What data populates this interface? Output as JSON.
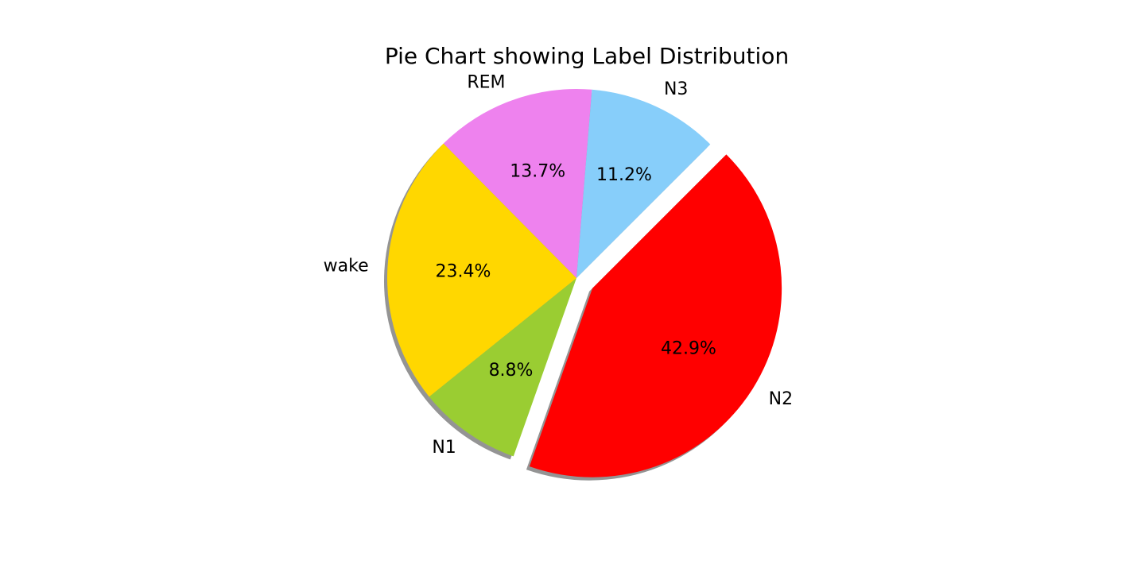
{
  "chart_data": {
    "type": "pie",
    "title": "Pie Chart showing Label Distribution",
    "labels": [
      "N2",
      "N1",
      "wake",
      "REM",
      "N3"
    ],
    "values": [
      42.9,
      8.8,
      23.4,
      13.7,
      11.2
    ],
    "percent_labels": [
      "42.9%",
      "8.8%",
      "23.4%",
      "13.7%",
      "11.2%"
    ],
    "colors": [
      "#ff0000",
      "#9acd32",
      "#ffd700",
      "#ee82ee",
      "#87cefa"
    ],
    "explode": [
      0.1,
      0,
      0,
      0,
      0
    ],
    "shadow": true,
    "start_angle_deg": 45,
    "direction": "clockwise"
  }
}
